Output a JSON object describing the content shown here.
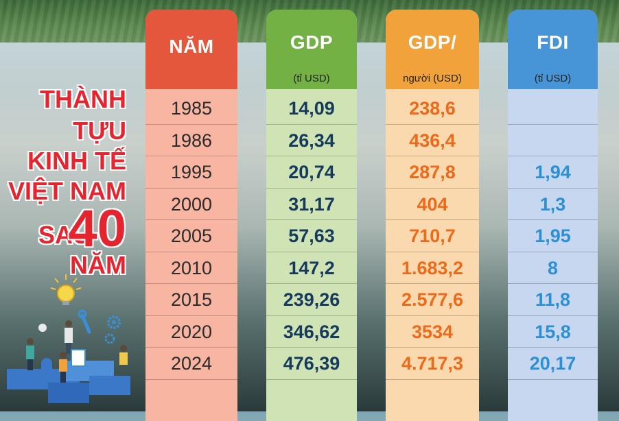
{
  "infographic": {
    "title_lines": [
      "THÀNH",
      "TỰU",
      "KINH TẾ",
      "VIỆT NAM",
      "SAU",
      "40",
      "NĂM"
    ]
  },
  "chart_data": {
    "type": "table",
    "columns": [
      {
        "key": "year",
        "title": "NĂM",
        "unit": ""
      },
      {
        "key": "gdp",
        "title": "GDP",
        "unit": "(tỉ USD)"
      },
      {
        "key": "gdp_per_capita",
        "title": "GDP/",
        "unit": "người (USD)"
      },
      {
        "key": "fdi",
        "title": "FDI",
        "unit": "(tỉ USD)"
      }
    ],
    "rows": [
      {
        "year": "1985",
        "gdp": "14,09",
        "gdp_per_capita": "238,6",
        "fdi": ""
      },
      {
        "year": "1986",
        "gdp": "26,34",
        "gdp_per_capita": "436,4",
        "fdi": ""
      },
      {
        "year": "1995",
        "gdp": "20,74",
        "gdp_per_capita": "287,8",
        "fdi": "1,94"
      },
      {
        "year": "2000",
        "gdp": "31,17",
        "gdp_per_capita": "404",
        "fdi": "1,3"
      },
      {
        "year": "2005",
        "gdp": "57,63",
        "gdp_per_capita": "710,7",
        "fdi": "1,95"
      },
      {
        "year": "2010",
        "gdp": "147,2",
        "gdp_per_capita": "1.683,2",
        "fdi": "8"
      },
      {
        "year": "2015",
        "gdp": "239,26",
        "gdp_per_capita": "2.577,6",
        "fdi": "11,8"
      },
      {
        "year": "2020",
        "gdp": "346,62",
        "gdp_per_capita": "3534",
        "fdi": "15,8"
      },
      {
        "year": "2024",
        "gdp": "476,39",
        "gdp_per_capita": "4.717,3",
        "fdi": "20,17"
      }
    ]
  },
  "colors": {
    "year_header": "#e4573c",
    "gdp_header": "#74b144",
    "gdp_per_capita_header": "#f2a23a",
    "fdi_header": "#4795d7",
    "title_red": "#e4242e"
  },
  "illustration": {
    "icons": [
      "lightbulb-icon",
      "gear-icon",
      "wrench-icon",
      "person-icon",
      "puzzle-icon"
    ]
  }
}
